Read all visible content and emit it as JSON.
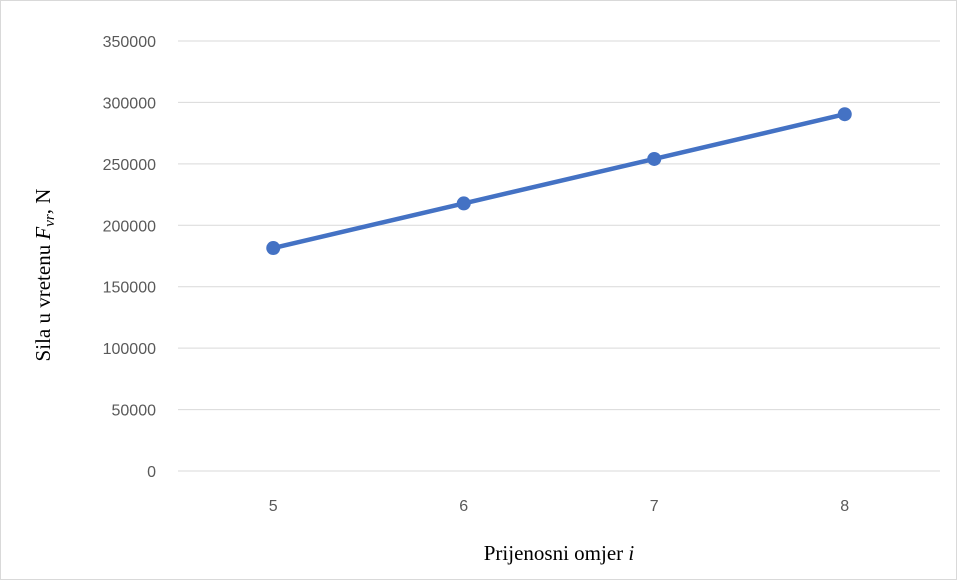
{
  "chart_data": {
    "type": "line",
    "x": [
      5,
      6,
      7,
      8
    ],
    "categories": [
      "5",
      "6",
      "7",
      "8"
    ],
    "series": [
      {
        "values": [
          181500,
          217800,
          254000,
          290400
        ],
        "color": "#4472C4"
      }
    ],
    "ylim": [
      0,
      350000
    ],
    "yticks": [
      "0",
      "50000",
      "100000",
      "150000",
      "200000",
      "250000",
      "300000",
      "350000"
    ],
    "xlabel": {
      "text": "Prijenosni omjer ",
      "var": "i"
    },
    "ylabel": {
      "text": "Sila u vretenu ",
      "var": "F",
      "sub": "vr",
      "suffix": ", N"
    },
    "grid": true,
    "legend": "none"
  }
}
